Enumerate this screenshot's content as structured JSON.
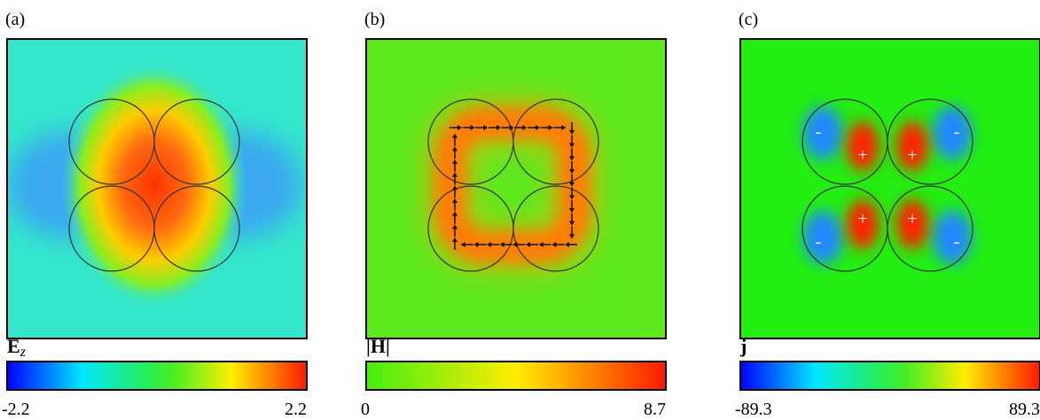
{
  "panels": [
    {
      "label": "(a)",
      "colorbar": {
        "title": "E",
        "subscript": "z",
        "min": -2.2,
        "max": 2.2
      }
    },
    {
      "label": "(b)",
      "colorbar": {
        "title": "|H|",
        "min": 0,
        "max": 8.7
      }
    },
    {
      "label": "(c)",
      "colorbar": {
        "title": "j",
        "min": -89.3,
        "max": 89.3
      },
      "signs": [
        "-",
        "+",
        "+",
        "-",
        "-",
        "+",
        "+",
        "-"
      ]
    }
  ]
}
